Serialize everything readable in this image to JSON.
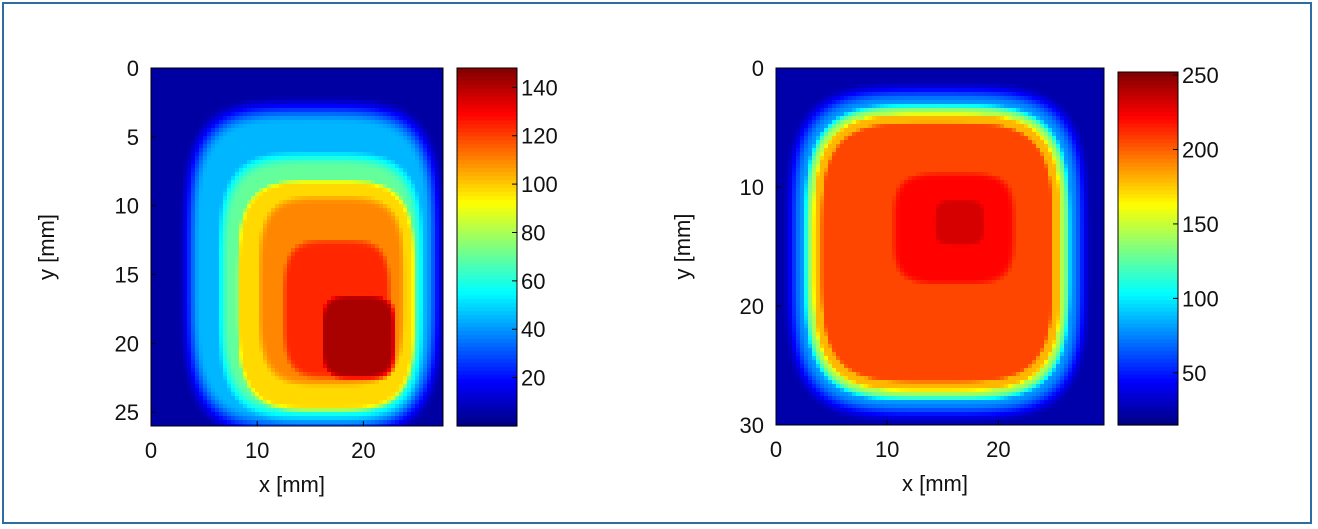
{
  "frame_color": "#2e6da4",
  "chart_data": [
    {
      "type": "heatmap",
      "id": "left",
      "xlabel": "x [mm]",
      "ylabel": "y [mm]",
      "xlim": [
        0,
        27.5
      ],
      "ylim": [
        0,
        26
      ],
      "y_reversed": true,
      "xticks": [
        0,
        10,
        20
      ],
      "yticks": [
        0,
        5,
        10,
        15,
        20,
        25
      ],
      "colorbar": {
        "min": 0,
        "max": 148,
        "ticks": [
          20,
          40,
          60,
          80,
          100,
          120,
          140
        ]
      },
      "colormap": "jet",
      "background_value": 5,
      "blobs": [
        {
          "cx": 15.2,
          "cy": 14.6,
          "rx": 11.6,
          "ry": 11.6,
          "value": 45,
          "edge": 2.2,
          "mode": "max"
        },
        {
          "cx": 16.0,
          "cy": 15.8,
          "rx": 10.0,
          "ry": 10.0,
          "value": 70,
          "edge": 3.0,
          "mode": "max"
        },
        {
          "cx": 16.5,
          "cy": 16.5,
          "rx": 8.6,
          "ry": 8.6,
          "value": 98,
          "edge": 1.2,
          "mode": "max"
        },
        {
          "cx": 17.0,
          "cy": 16.2,
          "rx": 8.0,
          "ry": 8.0,
          "value": 110,
          "edge": 3.5,
          "mode": "max"
        },
        {
          "cx": 17.5,
          "cy": 17.5,
          "rx": 6.0,
          "ry": 6.0,
          "value": 124,
          "edge": 3.0,
          "mode": "max"
        },
        {
          "cx": 19.5,
          "cy": 19.5,
          "rx": 4.0,
          "ry": 3.5,
          "value": 142,
          "edge": 1.8,
          "mode": "max"
        }
      ]
    },
    {
      "type": "heatmap",
      "id": "right",
      "xlabel": "x [mm]",
      "ylabel": "y [mm]",
      "xlim": [
        0,
        29.5
      ],
      "ylim": [
        0,
        30
      ],
      "y_reversed": true,
      "xticks": [
        0,
        10,
        20
      ],
      "yticks": [
        0,
        10,
        20,
        30
      ],
      "colorbar": {
        "min": 15,
        "max": 252,
        "ticks": [
          50,
          100,
          150,
          200,
          250
        ]
      },
      "colormap": "jet",
      "background_value": 25,
      "blobs": [
        {
          "cx": 14.5,
          "cy": 15.5,
          "rx": 13.0,
          "ry": 13.5,
          "value": 80,
          "edge": 2.0,
          "mode": "max"
        },
        {
          "cx": 14.5,
          "cy": 15.5,
          "rx": 12.0,
          "ry": 12.5,
          "value": 145,
          "edge": 1.5,
          "mode": "max"
        },
        {
          "cx": 14.5,
          "cy": 15.5,
          "rx": 11.4,
          "ry": 11.9,
          "value": 180,
          "edge": 1.0,
          "mode": "max"
        },
        {
          "cx": 14.5,
          "cy": 15.5,
          "rx": 10.8,
          "ry": 11.3,
          "value": 206,
          "edge": 1.2,
          "mode": "max"
        },
        {
          "cx": 16.0,
          "cy": 13.5,
          "rx": 7.0,
          "ry": 6.0,
          "value": 222,
          "edge": 4.0,
          "mode": "max"
        },
        {
          "cx": 16.5,
          "cy": 13.0,
          "rx": 3.5,
          "ry": 3.0,
          "value": 232,
          "edge": 3.0,
          "mode": "max"
        }
      ]
    }
  ]
}
